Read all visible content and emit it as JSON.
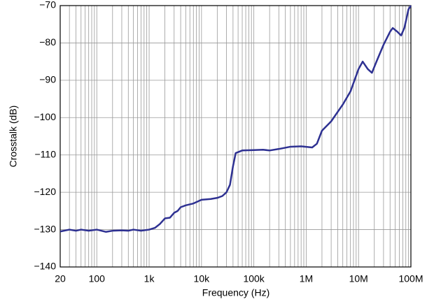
{
  "chart_data": {
    "type": "line",
    "x_label": "Frequency (Hz)",
    "y_label": "Crosstalk (dB)",
    "x": [
      20,
      30,
      40,
      50,
      70,
      100,
      150,
      200,
      300,
      400,
      500,
      700,
      1000,
      1300,
      1600,
      2000,
      2500,
      3000,
      3500,
      4000,
      5000,
      7000,
      10000,
      15000,
      20000,
      25000,
      30000,
      35000,
      40000,
      45000,
      60000,
      100000,
      150000,
      200000,
      300000,
      500000,
      800000,
      1300000,
      1600000,
      2000000,
      3000000,
      5000000,
      7000000,
      10000000,
      12000000,
      15000000,
      18000000,
      22000000,
      30000000,
      40000000,
      45000000,
      55000000,
      65000000,
      75000000,
      90000000,
      100000000
    ],
    "values": [
      -130.5,
      -130,
      -130.3,
      -130,
      -130.3,
      -130,
      -130.6,
      -130.3,
      -130.2,
      -130.3,
      -130,
      -130.3,
      -130,
      -129.5,
      -128.5,
      -127,
      -126.8,
      -125.5,
      -125,
      -124,
      -123.5,
      -123,
      -122,
      -121.8,
      -121.5,
      -121,
      -120,
      -118,
      -113,
      -109.5,
      -108.8,
      -108.7,
      -108.6,
      -108.8,
      -108.4,
      -107.8,
      -107.7,
      -108,
      -107,
      -103.5,
      -101,
      -96.5,
      -93,
      -87,
      -85,
      -87,
      -88,
      -85,
      -80.5,
      -77,
      -76,
      -77,
      -78,
      -76,
      -71,
      -70
    ],
    "color": "#2e3192",
    "xscale": "log",
    "grid": true,
    "xlim": [
      20,
      100000000
    ],
    "xticks": [
      20,
      100,
      {
        "value": 1000,
        "label": "1k"
      },
      {
        "value": 10000,
        "label": "10k"
      },
      {
        "value": 100000,
        "label": "100k"
      },
      {
        "value": 1000000,
        "label": "1M"
      },
      {
        "value": 10000000,
        "label": "10M"
      },
      {
        "value": 100000000,
        "label": "100M"
      }
    ],
    "ylim": [
      -140,
      -70
    ],
    "yticks": [
      {
        "value": -140,
        "label": "−140"
      },
      {
        "value": -130,
        "label": "−130"
      },
      {
        "value": -120,
        "label": "−120"
      },
      {
        "value": -110,
        "label": "−110"
      },
      {
        "value": -100,
        "label": "−100"
      },
      {
        "value": -90,
        "label": "−90"
      },
      {
        "value": -80,
        "label": "−80"
      },
      {
        "value": -70,
        "label": "−70"
      }
    ]
  }
}
